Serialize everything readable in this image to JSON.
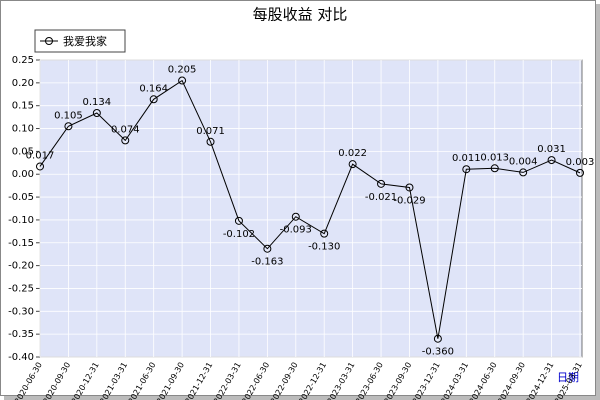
{
  "chart_data": {
    "type": "line",
    "title": "每股收益 对比",
    "x_label": "日期",
    "categories": [
      "2020-06-30",
      "2020-09-30",
      "2020-12-31",
      "2021-03-31",
      "2021-06-30",
      "2021-09-30",
      "2021-12-31",
      "2022-03-31",
      "2022-06-30",
      "2022-09-30",
      "2022-12-31",
      "2023-03-31",
      "2023-06-30",
      "2023-09-30",
      "2023-12-31",
      "2024-03-31",
      "2024-06-30",
      "2024-09-30",
      "2024-12-31",
      "2025-03-31"
    ],
    "series": [
      {
        "name": "我爱我家",
        "color": "#000000",
        "values": [
          0.017,
          0.105,
          0.134,
          0.074,
          0.164,
          0.205,
          0.071,
          -0.102,
          -0.163,
          -0.093,
          -0.13,
          0.022,
          -0.021,
          -0.029,
          -0.36,
          0.011,
          0.013,
          0.004,
          0.031,
          0.003
        ],
        "value_labels": [
          "0.017",
          "0.105",
          "0.134",
          "0.074",
          "0.164",
          "0.205",
          "0.071",
          "-0.102",
          "-0.163",
          "-0.093",
          "-0.130",
          "0.022",
          "-0.021",
          "-0.029",
          "-0.360",
          "0.011",
          "0.013",
          "0.004",
          "0.031",
          "0.003"
        ]
      }
    ],
    "ylim": [
      -0.4,
      0.25
    ],
    "yticks": [
      0.25,
      {
        "value": 0.2,
        "label": "0.20"
      },
      0.15,
      {
        "value": 0.1,
        "label": "0.10"
      },
      0.05,
      {
        "value": 0,
        "label": "0.00"
      },
      -0.05,
      {
        "value": -0.1,
        "label": "-0.10"
      },
      -0.15,
      {
        "value": -0.2,
        "label": "-0.20"
      },
      -0.25,
      {
        "value": -0.3,
        "label": "-0.30"
      },
      -0.35,
      {
        "value": -0.4,
        "label": "-0.40"
      }
    ],
    "grid": true
  }
}
